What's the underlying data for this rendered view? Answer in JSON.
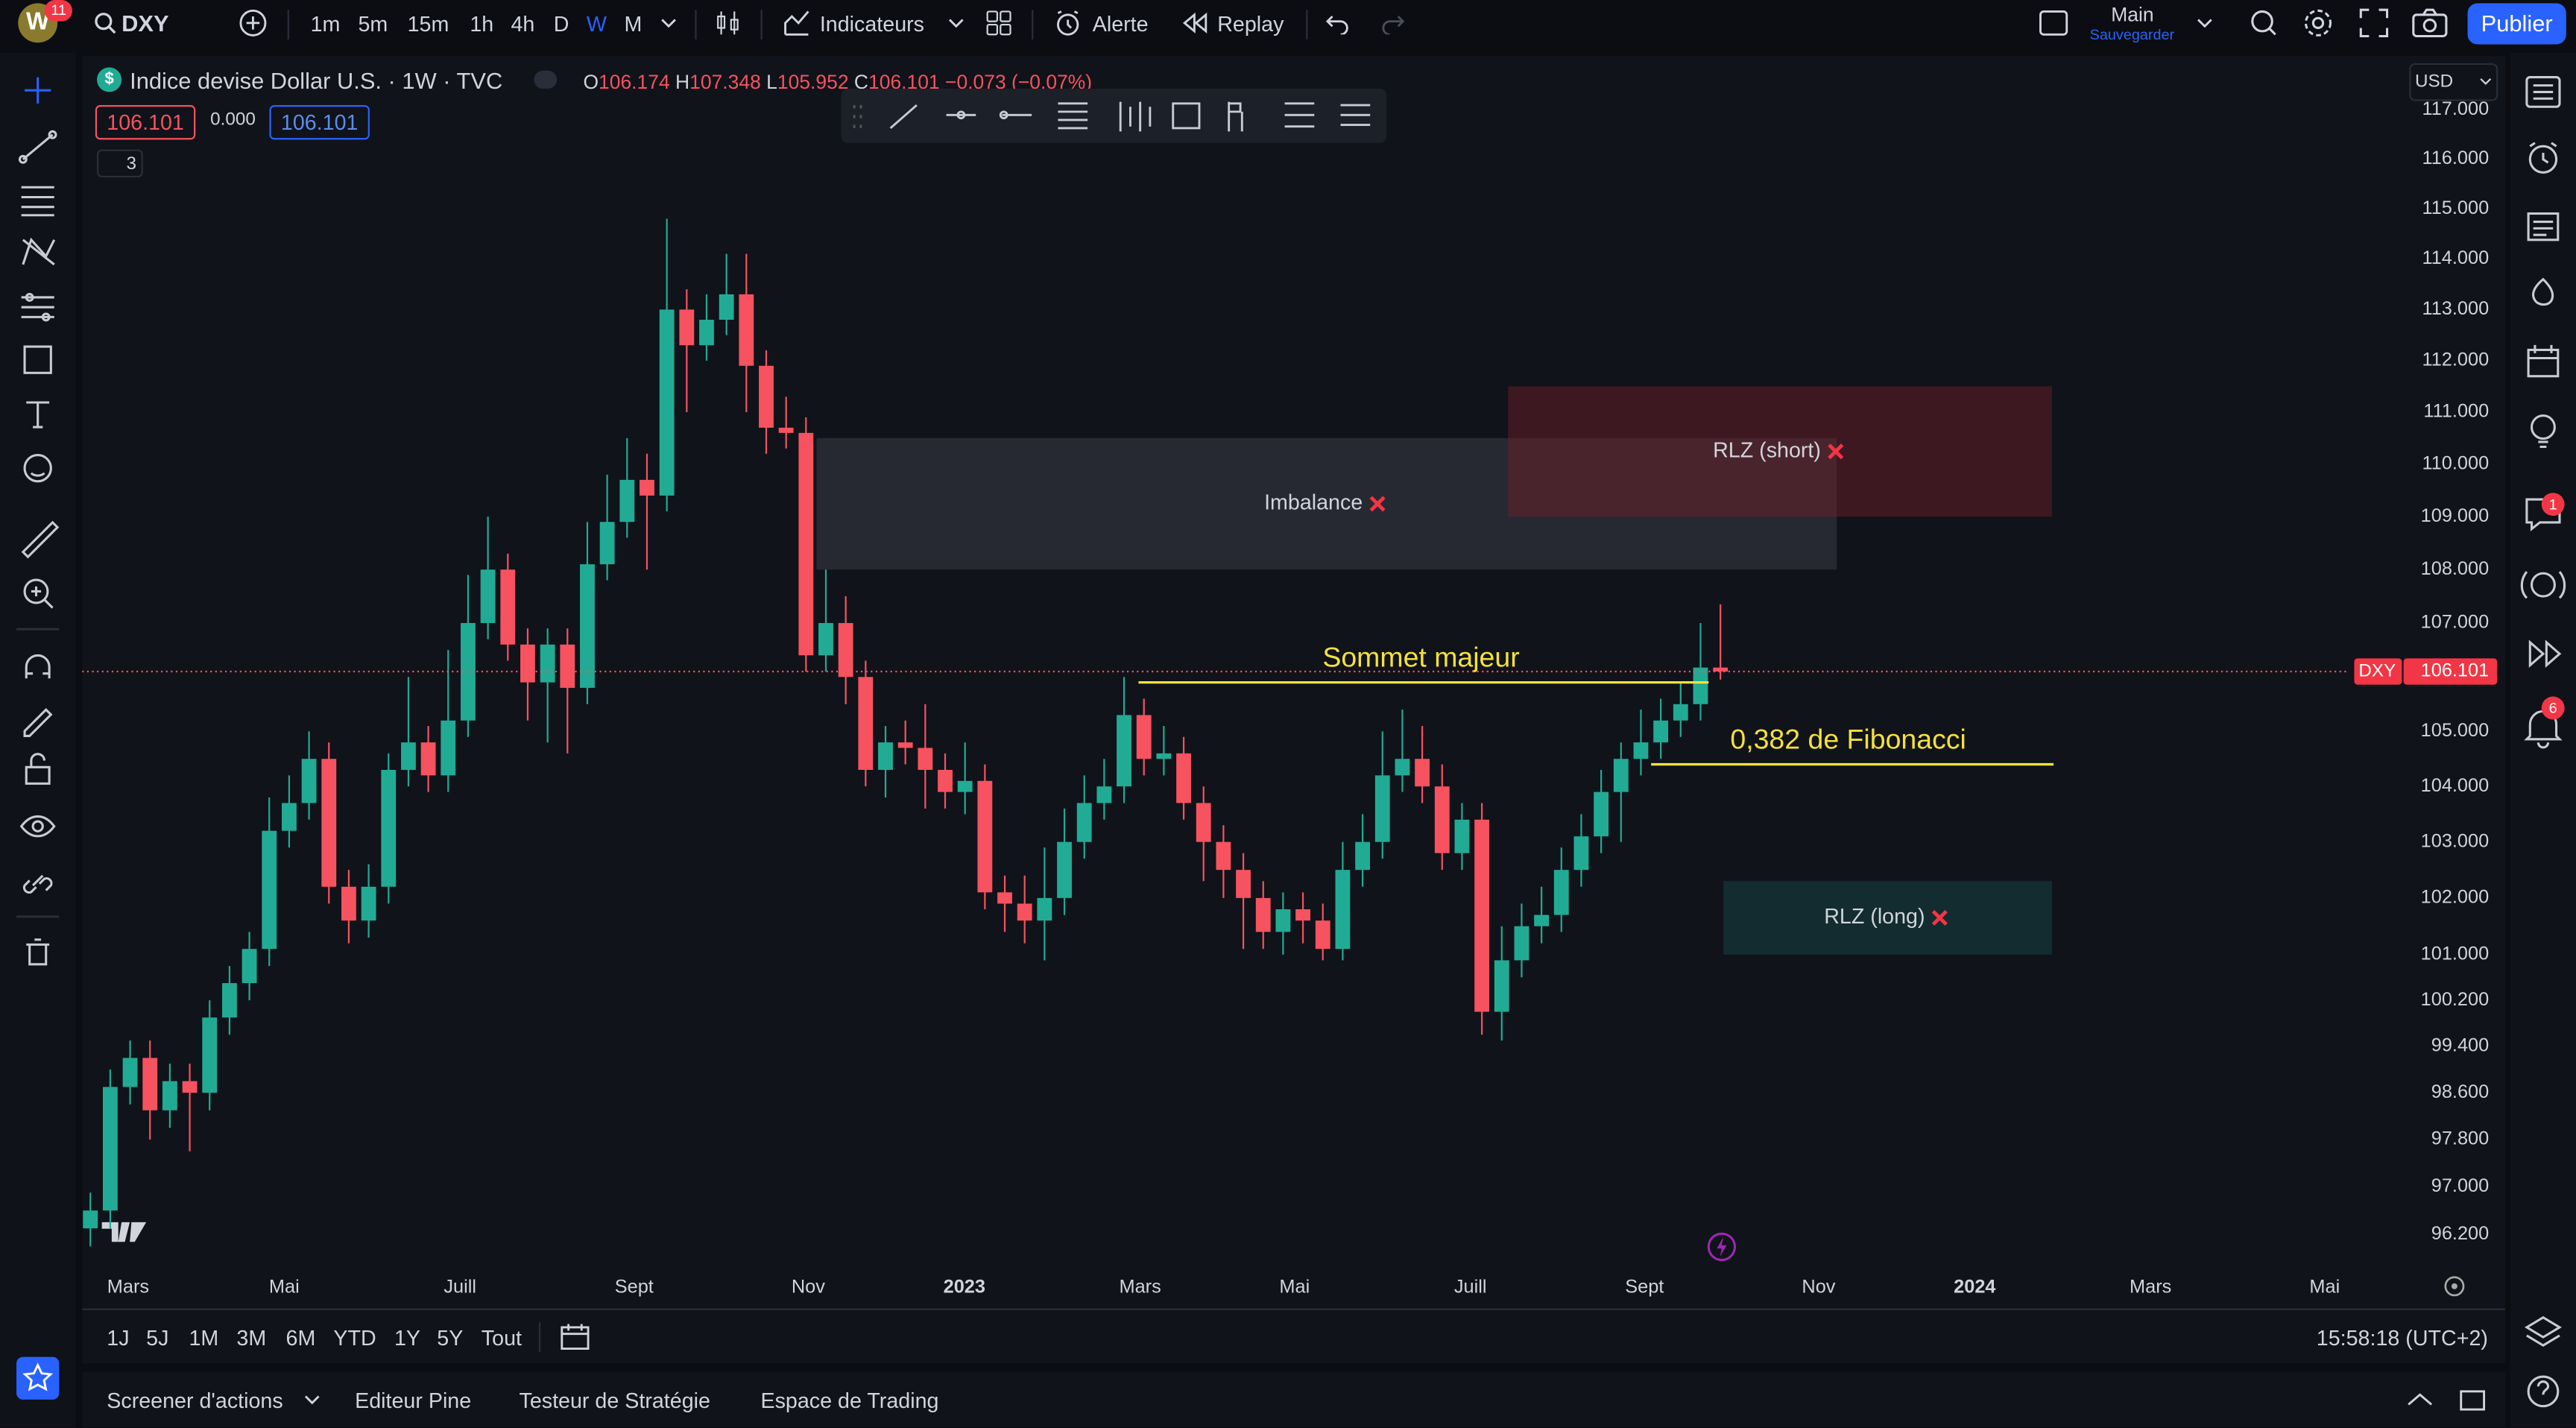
{
  "top_bar": {
    "avatar": "W",
    "badge": "11",
    "symbol": "DXY",
    "intervals": [
      "1m",
      "5m",
      "15m",
      "1h",
      "4h",
      "D",
      "W",
      "M"
    ],
    "indicators": "Indicateurs",
    "alert": "Alerte",
    "replay": "Replay",
    "layout_name": "Main",
    "layout_status": "Sauvegarder",
    "publish": "Publier"
  },
  "legend": {
    "title": "Indice devise Dollar U.S. · 1W · TVC",
    "o_label": "O",
    "h_label": "H",
    "l_label": "L",
    "c_label": "C",
    "change": "−0.073 (−0.07%)",
    "bid": "106.101",
    "spread": "0.000",
    "ask": "106.101",
    "indicator_count": "3",
    "currency": "USD"
  },
  "chart_data": {
    "type": "candlestick",
    "log_scale": true,
    "grid": false,
    "up_color": "#22ab94",
    "down_color": "#f7525f",
    "ylim": [
      95.69,
      117.16
    ],
    "yticks": [
      {
        "value": 117,
        "label": "117.000"
      },
      {
        "value": 116,
        "label": "116.000"
      },
      {
        "value": 115,
        "label": "115.000"
      },
      {
        "value": 114,
        "label": "114.000"
      },
      {
        "value": 113,
        "label": "113.000"
      },
      {
        "value": 112,
        "label": "112.000"
      },
      {
        "value": 111,
        "label": "111.000"
      },
      {
        "value": 110,
        "label": "110.000"
      },
      {
        "value": 109,
        "label": "109.000"
      },
      {
        "value": 108,
        "label": "108.000"
      },
      {
        "value": 107,
        "label": "107.000"
      },
      {
        "value": 105,
        "label": "105.000"
      },
      {
        "value": 104,
        "label": "104.000"
      },
      {
        "value": 103,
        "label": "103.000"
      },
      {
        "value": 102,
        "label": "102.000"
      },
      {
        "value": 101,
        "label": "101.000"
      },
      {
        "value": 100.2,
        "label": "100.200"
      },
      {
        "value": 99.4,
        "label": "99.400"
      },
      {
        "value": 98.6,
        "label": "98.600"
      },
      {
        "value": 97.8,
        "label": "97.800"
      },
      {
        "value": 97,
        "label": "97.000"
      },
      {
        "value": 96.2,
        "label": "96.200"
      }
    ],
    "x_labels": [
      "Mars",
      "Mai",
      "Juill",
      "Sept",
      "Nov",
      "2023",
      "Mars",
      "Mai",
      "Juill",
      "Sept",
      "Nov",
      "2024",
      "Mars",
      "Mai"
    ],
    "open": [
      96.3,
      96.6,
      98.7,
      99.2,
      98.3,
      98.8,
      98.6,
      99.9,
      100.5,
      101.1,
      103.2,
      103.7,
      104.5,
      102.2,
      101.6,
      102.2,
      104.3,
      104.8,
      104.2,
      105.2,
      107.0,
      108.0,
      106.6,
      105.9,
      106.6,
      105.8,
      108.1,
      108.9,
      109.7,
      109.4,
      113.0,
      112.3,
      112.8,
      113.3,
      111.9,
      110.7,
      110.6,
      106.4,
      107.0,
      106.0,
      104.3,
      104.8,
      104.7,
      104.3,
      103.9,
      104.1,
      102.1,
      101.9,
      101.6,
      102.0,
      103.0,
      103.7,
      104.0,
      105.3,
      104.5,
      104.6,
      103.7,
      103.0,
      102.5,
      102.0,
      101.4,
      101.8,
      101.6,
      101.1,
      102.5,
      103.0,
      104.2,
      104.5,
      104.0,
      102.8,
      103.4,
      100.0,
      100.9,
      101.5,
      101.7,
      102.5,
      103.1,
      103.9,
      104.5,
      104.8,
      105.2,
      105.5,
      106.174
    ],
    "high": [
      96.9,
      99.0,
      99.5,
      99.5,
      99.1,
      99.1,
      100.2,
      100.8,
      101.4,
      103.8,
      104.2,
      105.0,
      104.8,
      102.5,
      102.6,
      104.6,
      106.0,
      105.1,
      106.5,
      107.9,
      109.0,
      108.3,
      106.9,
      106.9,
      106.9,
      108.9,
      109.8,
      110.5,
      110.2,
      114.8,
      113.4,
      113.3,
      114.1,
      114.1,
      112.2,
      111.3,
      110.9,
      108.0,
      107.5,
      106.3,
      105.1,
      105.2,
      105.5,
      104.6,
      104.8,
      104.4,
      102.4,
      102.4,
      102.9,
      103.6,
      104.2,
      104.5,
      106.0,
      105.6,
      105.1,
      104.9,
      104.0,
      103.3,
      102.8,
      102.3,
      102.1,
      102.1,
      101.9,
      103.0,
      103.5,
      105.0,
      105.4,
      105.1,
      104.4,
      103.7,
      103.7,
      101.5,
      101.9,
      102.2,
      102.9,
      103.5,
      104.3,
      104.8,
      105.4,
      105.6,
      105.9,
      107.0,
      107.348
    ],
    "low": [
      96.0,
      96.3,
      98.4,
      97.8,
      98.0,
      97.6,
      98.3,
      99.6,
      100.2,
      100.8,
      102.9,
      103.4,
      101.9,
      101.2,
      101.3,
      101.9,
      104.0,
      103.9,
      103.9,
      104.9,
      106.7,
      106.3,
      105.2,
      104.8,
      104.6,
      105.5,
      107.8,
      108.6,
      108.0,
      109.1,
      111.0,
      112.0,
      112.5,
      111.0,
      110.2,
      110.3,
      106.1,
      106.1,
      105.5,
      104.0,
      103.8,
      104.4,
      103.6,
      103.6,
      103.5,
      101.8,
      101.4,
      101.2,
      100.9,
      101.7,
      102.7,
      103.4,
      103.7,
      104.2,
      104.2,
      103.4,
      102.3,
      102.0,
      101.1,
      101.1,
      101.0,
      101.2,
      100.9,
      100.9,
      102.2,
      102.7,
      103.9,
      103.7,
      102.5,
      102.5,
      99.6,
      99.5,
      100.6,
      101.2,
      101.4,
      102.2,
      102.8,
      103.0,
      104.2,
      104.5,
      104.9,
      105.2,
      105.952
    ],
    "close": [
      96.6,
      98.7,
      99.2,
      98.3,
      98.8,
      98.6,
      99.9,
      100.5,
      101.1,
      103.2,
      103.7,
      104.5,
      102.2,
      101.6,
      102.2,
      104.3,
      104.8,
      104.2,
      105.2,
      107.0,
      108.0,
      106.6,
      105.9,
      106.6,
      105.8,
      108.1,
      108.9,
      109.7,
      109.4,
      113.0,
      112.3,
      112.8,
      113.3,
      111.9,
      110.7,
      110.6,
      106.4,
      107.0,
      106.0,
      104.3,
      104.8,
      104.7,
      104.3,
      103.9,
      104.1,
      102.1,
      101.9,
      101.6,
      102.0,
      103.0,
      103.7,
      104.0,
      105.3,
      104.5,
      104.6,
      103.7,
      103.0,
      102.5,
      102.0,
      101.4,
      101.8,
      101.6,
      101.1,
      102.5,
      103.0,
      104.2,
      104.5,
      104.0,
      102.8,
      103.4,
      100.0,
      100.9,
      101.5,
      101.7,
      102.5,
      103.1,
      103.9,
      104.5,
      104.8,
      105.2,
      105.5,
      106.174,
      106.101
    ],
    "last_price_label": "DXY",
    "zones": [
      {
        "text": "Imbalance",
        "top": 110.5,
        "bottom": 108.0,
        "color": "rgba(120,123,134,0.22)"
      },
      {
        "text": "RLZ (short)",
        "top": 111.5,
        "bottom": 109.0,
        "color": "rgba(120,30,42,0.45)"
      },
      {
        "text": "RLZ (long)",
        "top": 102.3,
        "bottom": 101.0,
        "color": "rgba(25,75,75,0.45)"
      }
    ],
    "annotations": [
      {
        "text": "Sommet majeur",
        "value": 105.9,
        "color": "#f5e13b"
      },
      {
        "text": "0,382 de Fibonacci",
        "value": 104.4,
        "color": "#f5e13b"
      }
    ]
  },
  "bottom_bar": {
    "ranges": [
      "1J",
      "5J",
      "1M",
      "3M",
      "6M",
      "YTD",
      "1Y",
      "5Y",
      "Tout"
    ],
    "clock": "15:58:18 (UTC+2)"
  },
  "footer": {
    "tabs": [
      "Screener d'actions",
      "Editeur Pine",
      "Testeur de Stratégie",
      "Espace de Trading"
    ]
  },
  "sidebar": {
    "badge_chat": "1",
    "badge_alerts": "6"
  }
}
